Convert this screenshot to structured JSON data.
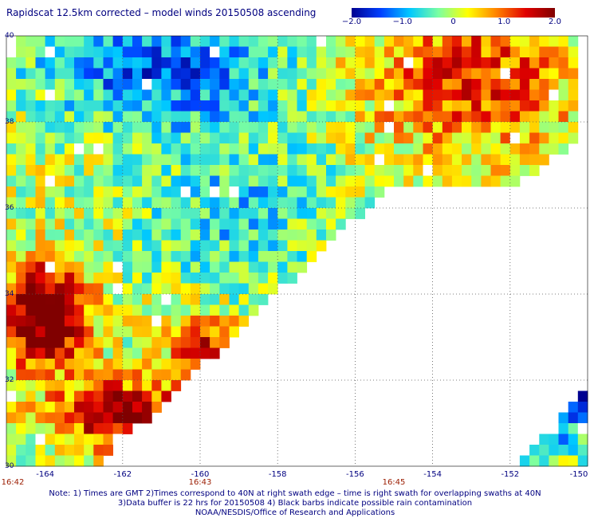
{
  "title": "Rapidscat 12.5km corrected – model winds 20150508 ascending",
  "colorbar": {
    "ticks": [
      {
        "label": "−2.0",
        "value": -2.0
      },
      {
        "label": "−1.0",
        "value": -1.0
      },
      {
        "label": "0",
        "value": 0
      },
      {
        "label": "1.0",
        "value": 1.0
      },
      {
        "label": "2.0",
        "value": 2.0
      }
    ],
    "colors": [
      "#000090",
      "#0040ff",
      "#00c8ff",
      "#7cffa0",
      "#ffff00",
      "#ff8000",
      "#e00000",
      "#800000"
    ]
  },
  "map": {
    "lat_range": [
      30,
      40
    ],
    "lon_range": [
      -165,
      -150
    ],
    "lat_labels": [
      "40",
      "38",
      "36",
      "34",
      "32",
      "30"
    ],
    "lon_labels": [
      "-164",
      "-162",
      "-160",
      "-158",
      "-156",
      "-154",
      "-152",
      "-150"
    ],
    "time_labels": [
      {
        "text": "16:42",
        "lon": -165
      },
      {
        "text": "16:43",
        "lon": -160
      },
      {
        "text": "16:45",
        "lon": -155
      }
    ]
  },
  "notes": [
    "Note: 1) Times are GMT 2)Times correspond to 40N at right swath edge – time is right swath for overlapping swaths at 40N",
    "3)Data buffer is 22 hrs for 20150508 4) Black barbs indicate possible rain contamination",
    "NOAA/NESDIS/Office of Research and Applications"
  ]
}
